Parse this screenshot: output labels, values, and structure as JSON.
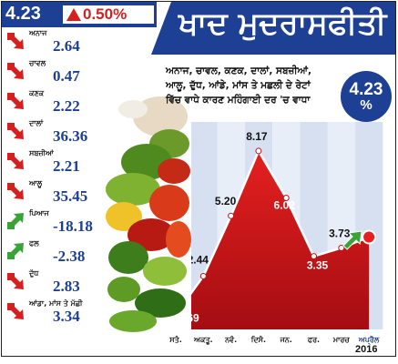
{
  "header": {
    "headline_value": "4.23",
    "headline_change": "0.50%",
    "title": "ਖਾਦ ਮੁਦਰਾਸਫੀਤੀ"
  },
  "description": [
    "ਅਨਾਜ, ਚਾਵਲ, ਕਣਕ, ਦਾਲਾਂ, ਸਬਜ਼ੀਆਂ,",
    "ਆਲੂ, ਦੁੱਧ, ਆਂਡੇ, ਮਾਂਸ ਤੇ ਮਛਲੀ ਦੇ ਰੇਟਾਂ",
    "ਵਿੱਚ ਵਾਧੇ ਕਾਰਣ ਮਹਿੰਗਾਈ ਦਰ 'ਚ ਵਾਧਾ"
  ],
  "bubble": {
    "value": "4.23",
    "unit": "%"
  },
  "items": [
    {
      "name": "ਅਨਾਜ",
      "value": "2.64",
      "direction": "down"
    },
    {
      "name": "ਚਾਵਲ",
      "value": "0.47",
      "direction": "down"
    },
    {
      "name": "ਕਣਕ",
      "value": "2.22",
      "direction": "down"
    },
    {
      "name": "ਦਾਲਾਂ",
      "value": "36.36",
      "direction": "down"
    },
    {
      "name": "ਸਬਜ਼ੀਆਂ",
      "value": "2.21",
      "direction": "down"
    },
    {
      "name": "ਆਲੂ",
      "value": "35.45",
      "direction": "down"
    },
    {
      "name": "ਪਿਆਜ",
      "value": "-18.18",
      "direction": "up"
    },
    {
      "name": "ਫਲ",
      "value": "-2.38",
      "direction": "up"
    },
    {
      "name": "ਦੁੱਧ",
      "value": "2.83",
      "direction": "down"
    },
    {
      "name": "ਆਂਡਾ, ਮਾਂਸ ਤੇ ਮੱਛੀ",
      "value": "3.34",
      "direction": "down"
    }
  ],
  "colors": {
    "navy": "#1d3f94",
    "red": "#d61f1f",
    "green": "#3aa335"
  },
  "chart_data": {
    "type": "area",
    "categories": [
      "ਸਤੰ.",
      "ਅਕਤੂ.",
      "ਨਵੰ.",
      "ਦਿਸੰ.",
      "ਜਨ.",
      "ਫਰ.",
      "ਮਾਰਚ",
      "ਅਪ੍ਰੈਲ"
    ],
    "values": [
      0.69,
      2.44,
      5.2,
      8.17,
      6.02,
      3.35,
      3.73,
      4.23
    ],
    "value_labels": [
      "0.69",
      "2.44",
      "5.20",
      "8.17",
      "6.02",
      "3.35",
      "3.73",
      ""
    ],
    "year_label": "2016",
    "ylim": [
      0,
      9.5
    ]
  },
  "icons": {
    "down_arrow": "red-down-arrow-icon",
    "up_arrow": "green-up-arrow-icon",
    "chart_arrow": "green-up-arrow-icon"
  }
}
